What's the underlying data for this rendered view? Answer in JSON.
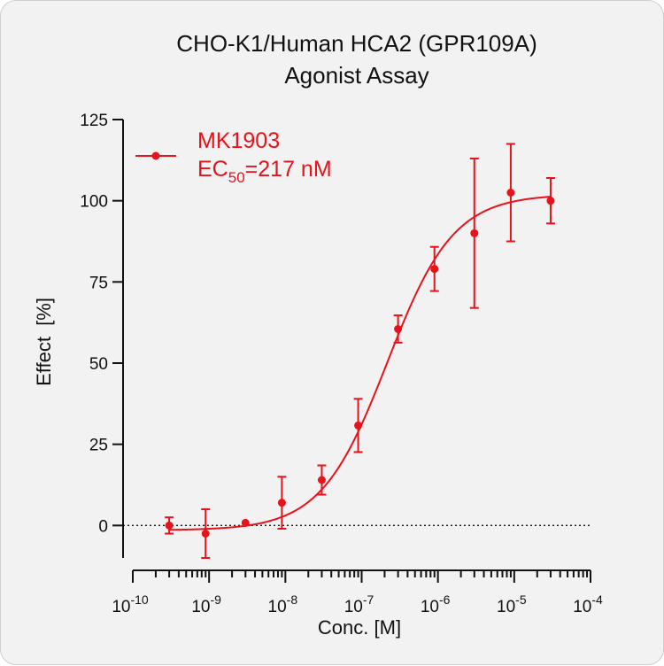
{
  "chart_data": {
    "type": "scatter",
    "title": "CHO-K1/Human HCA2 (GPR109A)",
    "subtitle": "Agonist Assay",
    "xlabel": "Conc. [M]",
    "ylabel": "Effect  [%]",
    "x_scale": "log",
    "xlim": [
      1e-10,
      0.0001
    ],
    "ylim": [
      -10,
      125
    ],
    "x_ticks": [
      {
        "value": 1e-10,
        "base": "10",
        "exp": "-10"
      },
      {
        "value": 1e-09,
        "base": "10",
        "exp": "-9"
      },
      {
        "value": 1e-08,
        "base": "10",
        "exp": "-8"
      },
      {
        "value": 1e-07,
        "base": "10",
        "exp": "-7"
      },
      {
        "value": 1e-06,
        "base": "10",
        "exp": "-6"
      },
      {
        "value": 1e-05,
        "base": "10",
        "exp": "-5"
      },
      {
        "value": 0.0001,
        "base": "10",
        "exp": "-4"
      }
    ],
    "y_ticks": [
      0,
      25,
      50,
      75,
      100,
      125
    ],
    "zero_line": "dotted",
    "legend_position": "top-left",
    "series": [
      {
        "name": "MK1903",
        "annotation": {
          "prefix": "EC",
          "sub": "50",
          "suffix": "=217 nM"
        },
        "color": "#e8121b",
        "x": [
          3e-10,
          9e-10,
          3e-09,
          9e-09,
          3e-08,
          9e-08,
          3e-07,
          9e-07,
          3e-06,
          9e-06,
          3e-05
        ],
        "y": [
          0,
          -2.5,
          0.8,
          7,
          14,
          30.8,
          60.5,
          79,
          90,
          102.5,
          100
        ],
        "err": [
          2.5,
          7.5,
          0,
          8,
          4.5,
          8.2,
          4.2,
          6.8,
          23,
          15,
          7
        ],
        "fit": {
          "bottom": -1.5,
          "top": 102,
          "ec50": 2.17e-07,
          "hill": 1.0
        }
      }
    ]
  }
}
